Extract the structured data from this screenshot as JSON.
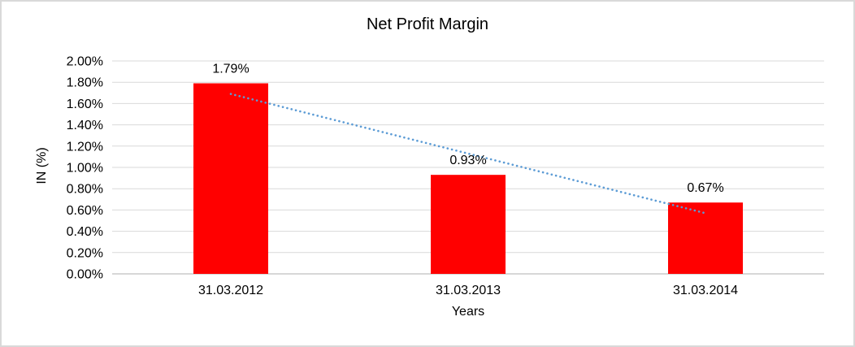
{
  "chart_data": {
    "type": "bar",
    "title": "Net Profit Margin",
    "categories": [
      "31.03.2012",
      "31.03.2013",
      "31.03.2014"
    ],
    "values": [
      1.79,
      0.93,
      0.67
    ],
    "data_labels": [
      "1.79%",
      "0.93%",
      "0.67%"
    ],
    "xlabel": "Years",
    "ylabel": "IN (%)",
    "ylim": [
      0,
      2.0
    ],
    "y_tick_step": 0.2,
    "y_tick_labels": [
      "0.00%",
      "0.20%",
      "0.40%",
      "0.60%",
      "0.80%",
      "1.00%",
      "1.20%",
      "1.40%",
      "1.60%",
      "1.80%",
      "2.00%"
    ],
    "grid": true,
    "legend": "none",
    "trendline": {
      "type": "linear",
      "style": "dotted",
      "start_value": 1.69,
      "end_value": 0.57
    },
    "colors": {
      "bar": "#ff0000",
      "trendline": "#5b9bd5",
      "gridline": "#d9d9d9",
      "axis_line": "#bfbfbf",
      "border": "#d9d9d9",
      "text": "#000000"
    }
  }
}
